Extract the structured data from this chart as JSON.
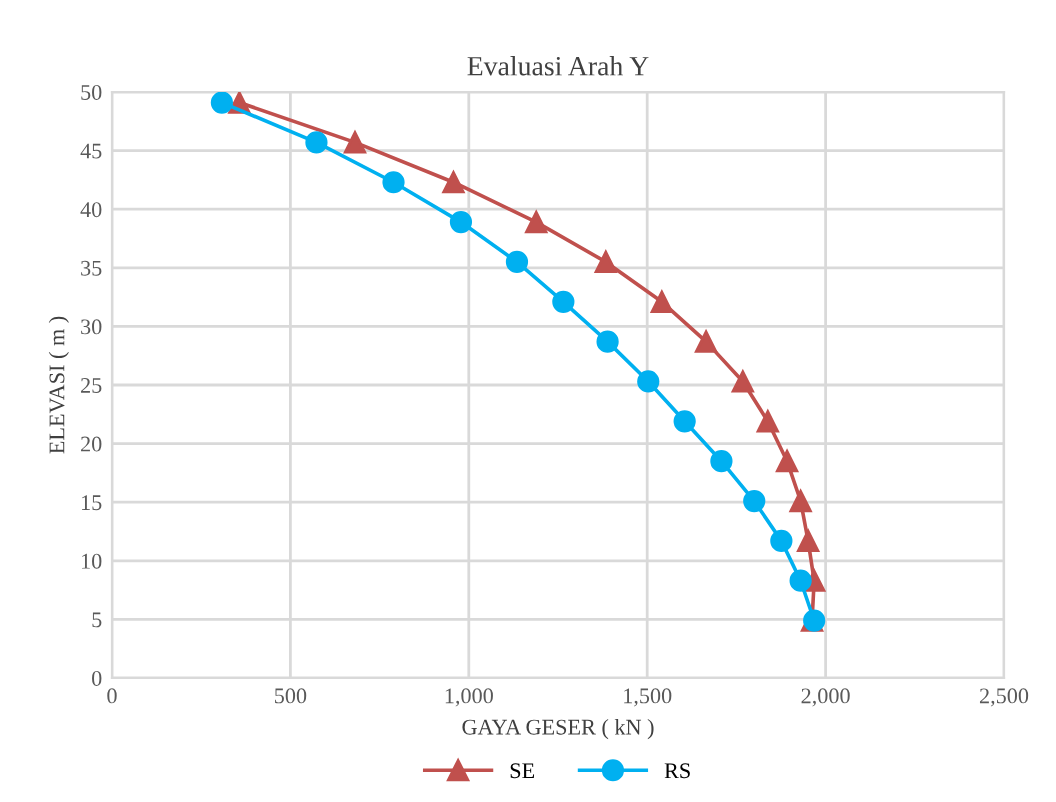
{
  "chart_data": {
    "type": "line",
    "title": "Evaluasi Arah Y",
    "xlabel": "GAYA GESER ( kN )",
    "ylabel": "ELEVASI ( m )",
    "xlim": [
      0,
      2500
    ],
    "ylim": [
      0,
      50
    ],
    "xticks": [
      0,
      500,
      {
        "value": 1000,
        "label": "1,000"
      },
      {
        "value": 1500,
        "label": "1,500"
      },
      {
        "value": 2000,
        "label": "2,000"
      },
      {
        "value": 2500,
        "label": "2,500"
      }
    ],
    "yticks": [
      0,
      5,
      10,
      15,
      20,
      25,
      30,
      35,
      40,
      45,
      50
    ],
    "grid": true,
    "legend": "bottom",
    "line_style": "solid",
    "series": [
      {
        "name": "SE",
        "color": "#c0504d",
        "marker": "triangle",
        "x": [
          357,
          681,
          957,
          1189,
          1384,
          1541,
          1665,
          1768,
          1838,
          1892,
          1930,
          1951,
          1968,
          1962
        ],
        "values": [
          49.1,
          45.7,
          42.3,
          38.9,
          35.5,
          32.1,
          28.7,
          25.3,
          21.9,
          18.5,
          15.1,
          11.7,
          8.3,
          4.9
        ]
      },
      {
        "name": "RS",
        "color": "#00b0f0",
        "marker": "circle",
        "x": [
          308,
          573,
          789,
          978,
          1135,
          1265,
          1389,
          1503,
          1605,
          1708,
          1800,
          1876,
          1930,
          1968
        ],
        "values": [
          49.1,
          45.7,
          42.3,
          38.9,
          35.5,
          32.1,
          28.7,
          25.3,
          21.9,
          18.5,
          15.1,
          11.7,
          8.3,
          4.9
        ]
      }
    ]
  }
}
